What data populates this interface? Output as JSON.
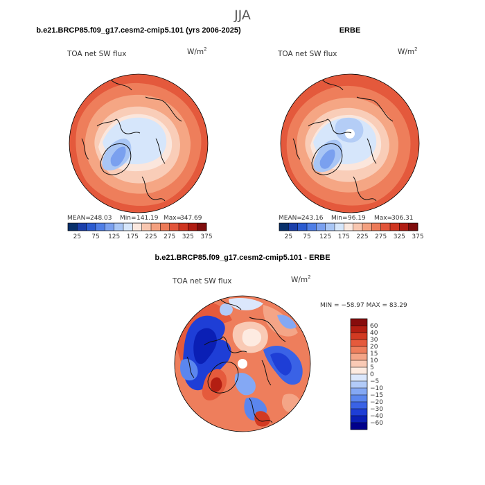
{
  "figure": {
    "season": "JJA",
    "colors": {
      "abs_scale": [
        "#08306b",
        "#1a3faa",
        "#2b5bd0",
        "#4f7ee6",
        "#7aa0ef",
        "#a9c6f5",
        "#d6e6fb",
        "#fbe8df",
        "#f8c6af",
        "#f3a07f",
        "#ec7a58",
        "#e2553a",
        "#cf3520",
        "#b01c12",
        "#7f0d0d"
      ],
      "diff_scale": [
        "#00008b",
        "#0a1fb5",
        "#1e3ed6",
        "#3a62e6",
        "#5b86ee",
        "#84a8f4",
        "#b2cbf8",
        "#dbe7fc",
        "#fdebe1",
        "#f9cab5",
        "#f4a587",
        "#ee7e5c",
        "#e55a3c",
        "#d23a22",
        "#b31e12",
        "#870c0c"
      ]
    }
  },
  "chart_data": [
    {
      "type": "heatmap",
      "projection": "north-polar-stereographic",
      "title": "b.e21.BRCP85.f09_g17.cesm2-cmip5.101 (yrs 2006-2025)",
      "variable": "TOA net SW flux",
      "units_text": "W/m",
      "units_exp": "2",
      "stats": {
        "mean": "248.03",
        "min": "141.19",
        "max": "347.69"
      },
      "stat_labels": {
        "mean": "MEAN=",
        "min": "Min=",
        "max": "Max="
      },
      "colorbar": {
        "orientation": "horizontal",
        "ticks": [
          "25",
          "75",
          "125",
          "175",
          "225",
          "275",
          "325",
          "375"
        ],
        "levels": 15
      }
    },
    {
      "type": "heatmap",
      "projection": "north-polar-stereographic",
      "title": "ERBE",
      "variable": "TOA net SW flux",
      "units_text": "W/m",
      "units_exp": "2",
      "stats": {
        "mean": "243.16",
        "min": "96.19",
        "max": "306.31"
      },
      "stat_labels": {
        "mean": "MEAN=",
        "min": "Min=",
        "max": "Max="
      },
      "colorbar": {
        "orientation": "horizontal",
        "ticks": [
          "25",
          "75",
          "125",
          "175",
          "225",
          "275",
          "325",
          "375"
        ],
        "levels": 15
      }
    },
    {
      "type": "heatmap",
      "projection": "north-polar-stereographic",
      "title": "b.e21.BRCP85.f09_g17.cesm2-cmip5.101 - ERBE",
      "variable": "TOA net SW flux",
      "units_text": "W/m",
      "units_exp": "2",
      "minmax_text": "MIN = −58.97 MAX =  83.29",
      "colorbar": {
        "orientation": "vertical",
        "ticks": [
          "60",
          "40",
          "30",
          "20",
          "15",
          "10",
          "5",
          "0",
          "−5",
          "−10",
          "−15",
          "−20",
          "−30",
          "−40",
          "−60"
        ],
        "levels": 16
      }
    }
  ]
}
